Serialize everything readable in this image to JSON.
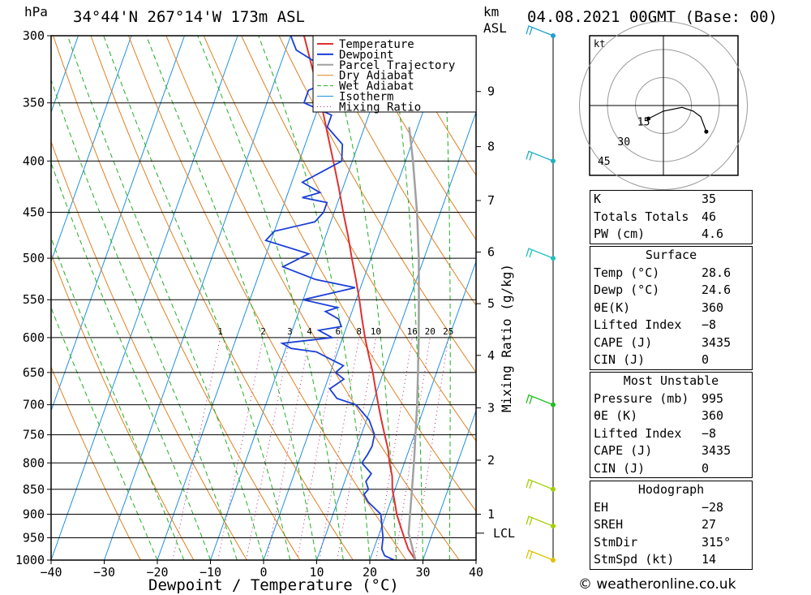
{
  "header": {
    "location": "34°44'N  267°14'W  173m  ASL",
    "run": "04.08.2021  00GMT  (Base: 00)",
    "pressure_unit": "hPa",
    "height_unit_1": "km",
    "height_unit_2": "ASL"
  },
  "legend": [
    "Temperature",
    "Dewpoint",
    "Parcel Trajectory",
    "Dry Adiabat",
    "Wet Adiabat",
    "Isotherm",
    "Mixing Ratio"
  ],
  "colors": {
    "temperature": "#e03030",
    "dewpoint": "#1a3fd8",
    "parcel": "#a0a0a0",
    "dry_adiabat": "#e08020",
    "wet_adiabat": "#20b020",
    "isotherm": "#2090e0",
    "mixing_ratio": "#c02080"
  },
  "chart_data": {
    "type": "line",
    "xlabel": "Dewpoint / Temperature (°C)",
    "ylabel": "",
    "x_ticks": [
      "−40",
      "−30",
      "−20",
      "−10",
      "0",
      "10",
      "20",
      "30",
      "40"
    ],
    "xlim": [
      -40,
      40
    ],
    "pressure_levels": [
      300,
      350,
      400,
      450,
      500,
      550,
      600,
      650,
      700,
      750,
      800,
      850,
      900,
      950,
      1000
    ],
    "km_ticks": [
      {
        "km": "1",
        "p": 900
      },
      {
        "km": "2",
        "p": 795
      },
      {
        "km": "3",
        "p": 705
      },
      {
        "km": "4",
        "p": 625
      },
      {
        "km": "5",
        "p": 555
      },
      {
        "km": "6",
        "p": 493
      },
      {
        "km": "7",
        "p": 438
      },
      {
        "km": "8",
        "p": 387
      },
      {
        "km": "9",
        "p": 341
      }
    ],
    "lcl_label": "LCL",
    "lcl_pressure": 940,
    "right_axis_label": "Mixing Ratio (g/kg)",
    "mixing_ratio_labels": [
      "1",
      "2",
      "3",
      "4",
      "6",
      "8",
      "10",
      "16",
      "20",
      "25"
    ],
    "mixing_ratio_values": [
      1,
      2,
      3,
      4,
      6,
      8,
      10,
      16,
      20,
      25
    ],
    "series": [
      {
        "name": "Temperature",
        "points": [
          [
            1000,
            28.6
          ],
          [
            975,
            26.5
          ],
          [
            950,
            25
          ],
          [
            925,
            23.5
          ],
          [
            900,
            22
          ],
          [
            875,
            20.8
          ],
          [
            850,
            19.5
          ],
          [
            825,
            18.6
          ],
          [
            800,
            17.2
          ],
          [
            775,
            16
          ],
          [
            750,
            14.4
          ],
          [
            725,
            12.8
          ],
          [
            700,
            11.2
          ],
          [
            675,
            9.6
          ],
          [
            650,
            8
          ],
          [
            625,
            6.1
          ],
          [
            600,
            4.2
          ],
          [
            575,
            2.4
          ],
          [
            550,
            0.6
          ],
          [
            525,
            -1.4
          ],
          [
            500,
            -3.6
          ],
          [
            475,
            -5.8
          ],
          [
            450,
            -8.3
          ],
          [
            425,
            -10.8
          ],
          [
            400,
            -13.6
          ],
          [
            375,
            -16.6
          ],
          [
            350,
            -19.8
          ],
          [
            325,
            -23.5
          ],
          [
            300,
            -27.5
          ]
        ]
      },
      {
        "name": "Dewpoint",
        "points": [
          [
            1000,
            24.6
          ],
          [
            990,
            22.5
          ],
          [
            975,
            21.5
          ],
          [
            950,
            21
          ],
          [
            925,
            20
          ],
          [
            900,
            19
          ],
          [
            875,
            15.8
          ],
          [
            860,
            14.5
          ],
          [
            850,
            15
          ],
          [
            835,
            14
          ],
          [
            820,
            14.5
          ],
          [
            800,
            12
          ],
          [
            785,
            12.5
          ],
          [
            770,
            12.8
          ],
          [
            750,
            12.5
          ],
          [
            725,
            10.5
          ],
          [
            700,
            7
          ],
          [
            690,
            3
          ],
          [
            675,
            1
          ],
          [
            660,
            3
          ],
          [
            650,
            1
          ],
          [
            640,
            2
          ],
          [
            630,
            -1
          ],
          [
            620,
            -4
          ],
          [
            615,
            -9
          ],
          [
            608,
            -11
          ],
          [
            600,
            -2
          ],
          [
            590,
            -5
          ],
          [
            585,
            -1
          ],
          [
            575,
            -2
          ],
          [
            565,
            -5
          ],
          [
            560,
            -3
          ],
          [
            550,
            -10
          ],
          [
            540,
            -4
          ],
          [
            535,
            -1
          ],
          [
            525,
            -9
          ],
          [
            510,
            -16
          ],
          [
            495,
            -12
          ],
          [
            480,
            -21
          ],
          [
            470,
            -20
          ],
          [
            460,
            -13
          ],
          [
            450,
            -12
          ],
          [
            440,
            -12
          ],
          [
            435,
            -17
          ],
          [
            430,
            -14
          ],
          [
            420,
            -18
          ],
          [
            400,
            -12
          ],
          [
            385,
            -13
          ],
          [
            370,
            -17
          ],
          [
            360,
            -17
          ],
          [
            350,
            -23
          ],
          [
            340,
            -23
          ],
          [
            330,
            -18
          ],
          [
            310,
            -28
          ],
          [
            300,
            -30
          ]
        ]
      },
      {
        "name": "Parcel Trajectory",
        "points": [
          [
            1000,
            28.6
          ],
          [
            940,
            25.5
          ],
          [
            900,
            24.5
          ],
          [
            850,
            23.2
          ],
          [
            800,
            21.8
          ],
          [
            750,
            20.2
          ],
          [
            700,
            18.5
          ],
          [
            650,
            16.5
          ],
          [
            600,
            14.3
          ],
          [
            550,
            11.8
          ],
          [
            500,
            9
          ],
          [
            450,
            5.6
          ],
          [
            400,
            1.4
          ],
          [
            370,
            -1.6
          ]
        ]
      }
    ],
    "wind_barbs": [
      {
        "p": 1000,
        "color": "#e0c000"
      },
      {
        "p": 925,
        "color": "#a0d000"
      },
      {
        "p": 850,
        "color": "#a0d000"
      },
      {
        "p": 700,
        "color": "#20c020"
      },
      {
        "p": 500,
        "color": "#20c0c0"
      },
      {
        "p": 400,
        "color": "#20b0c0"
      },
      {
        "p": 300,
        "color": "#20a0d0"
      }
    ]
  },
  "hodograph": {
    "unit": "kt",
    "ring_labels": [
      "15",
      "30",
      "45"
    ],
    "hodo_path": [
      [
        -8,
        -7
      ],
      [
        0,
        -3
      ],
      [
        10,
        -1
      ],
      [
        16,
        -3
      ],
      [
        20,
        -6
      ],
      [
        23,
        -14
      ]
    ]
  },
  "indices": {
    "top": [
      {
        "k": "K",
        "v": "35"
      },
      {
        "k": "Totals Totals",
        "v": "46"
      },
      {
        "k": "PW (cm)",
        "v": "4.6"
      }
    ],
    "surface": {
      "title": "Surface",
      "rows": [
        {
          "k": "Temp (°C)",
          "v": "28.6"
        },
        {
          "k": "Dewp (°C)",
          "v": "24.6"
        },
        {
          "k": "θE(K)",
          "v": "360"
        },
        {
          "k": "Lifted Index",
          "v": "−8"
        },
        {
          "k": "CAPE (J)",
          "v": "3435"
        },
        {
          "k": "CIN (J)",
          "v": "0"
        }
      ]
    },
    "most_unstable": {
      "title": "Most Unstable",
      "rows": [
        {
          "k": "Pressure (mb)",
          "v": "995"
        },
        {
          "k": "θE (K)",
          "v": "360"
        },
        {
          "k": "Lifted Index",
          "v": "−8"
        },
        {
          "k": "CAPE (J)",
          "v": "3435"
        },
        {
          "k": "CIN (J)",
          "v": "0"
        }
      ]
    },
    "hodograph": {
      "title": "Hodograph",
      "rows": [
        {
          "k": "EH",
          "v": "−28"
        },
        {
          "k": "SREH",
          "v": "27"
        },
        {
          "k": "StmDir",
          "v": "315°"
        },
        {
          "k": "StmSpd (kt)",
          "v": "14"
        }
      ]
    }
  },
  "credit": "© weatheronline.co.uk"
}
